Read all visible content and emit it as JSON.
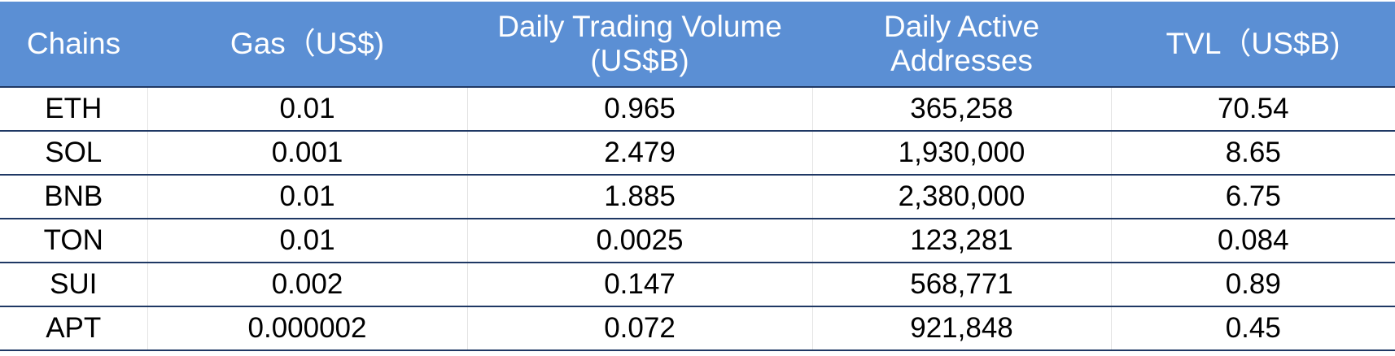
{
  "table": {
    "headers": [
      "Chains",
      "Gas（US$)",
      "Daily Trading Volume (US$B)",
      "Daily Active Addresses",
      "TVL（US$B)"
    ],
    "rows": [
      [
        "ETH",
        "0.01",
        "0.965",
        "365,258",
        "70.54"
      ],
      [
        "SOL",
        "0.001",
        "2.479",
        "1,930,000",
        "8.65"
      ],
      [
        "BNB",
        "0.01",
        "1.885",
        "2,380,000",
        "6.75"
      ],
      [
        "TON",
        "0.01",
        "0.0025",
        "123,281",
        "0.084"
      ],
      [
        "SUI",
        "0.002",
        "0.147",
        "568,771",
        "0.89"
      ],
      [
        "APT",
        "0.000002",
        "0.072",
        "921,848",
        "0.45"
      ]
    ]
  },
  "colors": {
    "header_bg": "#5b8fd4",
    "header_text": "#ffffff",
    "row_border": "#1f3864"
  }
}
